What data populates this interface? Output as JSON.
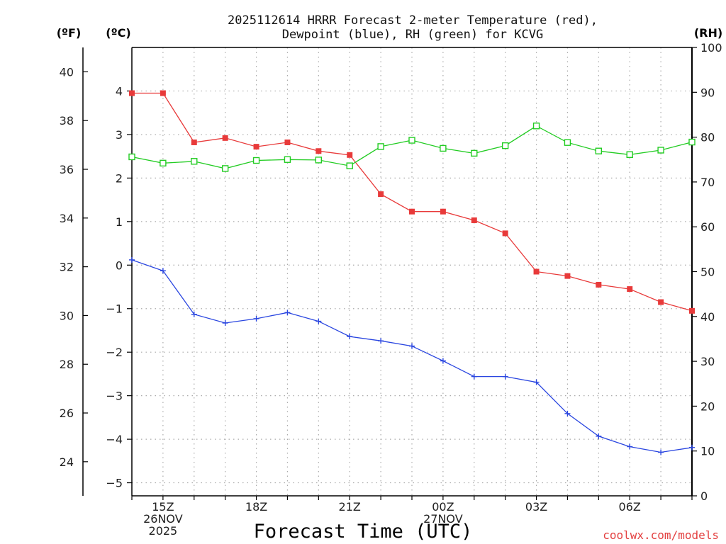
{
  "chart_data": {
    "type": "line",
    "title_lines": [
      "2025112614 HRRR Forecast 2-meter Temperature (red),",
      "Dewpoint (blue), RH (green) for KCVG"
    ],
    "xlabel": "Forecast Time (UTC)",
    "credit": "coolwx.com/models",
    "left_outer_axis": {
      "unit": "(ºF)",
      "range": [
        22.6,
        41.0
      ],
      "ticks": [
        "24",
        "26",
        "28",
        "30",
        "32",
        "34",
        "36",
        "38",
        "40"
      ]
    },
    "left_inner_axis": {
      "unit": "(ºC)",
      "range": [
        -5.3,
        5.0
      ],
      "ticks": [
        "-5",
        "-4",
        "-3",
        "-2",
        "-1",
        "0",
        "1",
        "2",
        "3",
        "4"
      ]
    },
    "right_axis": {
      "unit": "(RH)",
      "range": [
        0,
        100
      ],
      "ticks": [
        "0",
        "10",
        "20",
        "30",
        "40",
        "50",
        "60",
        "70",
        "80",
        "90",
        "100"
      ]
    },
    "x_range_hours": [
      14,
      32
    ],
    "x_ticks": [
      {
        "hour": 15,
        "lines": [
          "15Z",
          "26NOV",
          "2025"
        ]
      },
      {
        "hour": 18,
        "lines": [
          "18Z"
        ]
      },
      {
        "hour": 21,
        "lines": [
          "21Z"
        ]
      },
      {
        "hour": 24,
        "lines": [
          "00Z",
          "27NOV"
        ]
      },
      {
        "hour": 27,
        "lines": [
          "03Z"
        ]
      },
      {
        "hour": 30,
        "lines": [
          "06Z"
        ]
      }
    ],
    "x_hours": [
      14,
      15,
      16,
      17,
      18,
      19,
      20,
      21,
      22,
      23,
      24,
      25,
      26,
      27,
      28,
      29,
      30,
      31,
      32
    ],
    "series": [
      {
        "name": "2-meter Temperature",
        "axis": "celsius",
        "color": "#e83a3a",
        "marker": "filled-square",
        "values": [
          3.95,
          3.95,
          2.82,
          2.92,
          2.72,
          2.82,
          2.62,
          2.53,
          1.63,
          1.23,
          1.23,
          1.03,
          0.73,
          -0.15,
          -0.25,
          -0.45,
          -0.55,
          -0.85,
          -1.05
        ]
      },
      {
        "name": "Dewpoint",
        "axis": "celsius",
        "color": "#2a46e0",
        "marker": "plus",
        "values": [
          0.12,
          -0.13,
          -1.13,
          -1.33,
          -1.23,
          -1.09,
          -1.29,
          -1.64,
          -1.74,
          -1.86,
          -2.2,
          -2.56,
          -2.56,
          -2.69,
          -3.41,
          -3.93,
          -4.17,
          -4.3,
          -4.19
        ]
      },
      {
        "name": "Relative Humidity",
        "axis": "rh",
        "color": "#22cc22",
        "marker": "open-square",
        "values": [
          75.6,
          74.2,
          74.6,
          73.0,
          74.8,
          75.0,
          74.9,
          73.6,
          77.9,
          79.3,
          77.5,
          76.4,
          78.1,
          82.5,
          78.8,
          76.9,
          76.1,
          77.1,
          78.9
        ]
      }
    ]
  }
}
